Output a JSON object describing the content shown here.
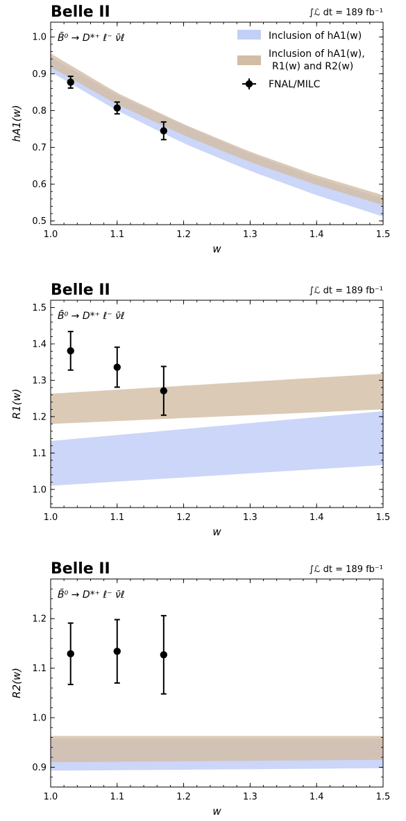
{
  "colors": {
    "band_a": "#c2cff7",
    "band_b": "#d2bda4",
    "point": "#000000"
  },
  "chart_data": [
    {
      "type": "line",
      "title": "Belle II",
      "luminosity": "∫ℒ dt = 189 fb⁻¹",
      "process": "B̄⁰ → D*⁺ ℓ⁻ ν̄ℓ",
      "xlabel": "w",
      "ylabel": "hA1(w)",
      "xlim": [
        1.0,
        1.5
      ],
      "ylim": [
        0.49,
        1.04
      ],
      "xticks": [
        "1.0",
        "1.1",
        "1.2",
        "1.3",
        "1.4",
        "1.5"
      ],
      "yticks": [
        "0.5",
        "0.6",
        "0.7",
        "0.8",
        "0.9",
        "1.0"
      ],
      "legend": {
        "position": "top-right",
        "entries": [
          "Inclusion of hA1(w)",
          "Inclusion of hA1(w), R1(w) and R2(w)",
          "FNAL/MILC"
        ]
      },
      "series": [
        {
          "name": "Inclusion of hA1(w)",
          "kind": "band",
          "x": [
            1.0,
            1.1,
            1.2,
            1.3,
            1.4,
            1.5
          ],
          "low": [
            0.905,
            0.8,
            0.711,
            0.636,
            0.57,
            0.512
          ],
          "high": [
            0.945,
            0.842,
            0.76,
            0.683,
            0.617,
            0.562
          ]
        },
        {
          "name": "Inclusion of hA1(w), R1(w) and R2(w)",
          "kind": "band",
          "x": [
            1.0,
            1.1,
            1.2,
            1.3,
            1.4,
            1.5
          ],
          "low": [
            0.918,
            0.817,
            0.733,
            0.66,
            0.598,
            0.543
          ],
          "high": [
            0.955,
            0.848,
            0.763,
            0.688,
            0.624,
            0.57
          ]
        },
        {
          "name": "FNAL/MILC",
          "kind": "points",
          "x": [
            1.03,
            1.1,
            1.17
          ],
          "y": [
            0.877,
            0.807,
            0.745
          ],
          "err": [
            0.016,
            0.016,
            0.024
          ]
        }
      ]
    },
    {
      "type": "line",
      "title": "Belle II",
      "luminosity": "∫ℒ dt = 189 fb⁻¹",
      "process": "B̄⁰ → D*⁺ ℓ⁻ ν̄ℓ",
      "xlabel": "w",
      "ylabel": "R1(w)",
      "xlim": [
        1.0,
        1.5
      ],
      "ylim": [
        0.95,
        1.52
      ],
      "xticks": [
        "1.0",
        "1.1",
        "1.2",
        "1.3",
        "1.4",
        "1.5"
      ],
      "yticks": [
        "1.0",
        "1.1",
        "1.2",
        "1.3",
        "1.4",
        "1.5"
      ],
      "series": [
        {
          "name": "Inclusion of hA1(w)",
          "kind": "band",
          "x": [
            1.0,
            1.5
          ],
          "low": [
            1.01,
            1.067
          ],
          "high": [
            1.133,
            1.215
          ]
        },
        {
          "name": "Inclusion of hA1(w), R1(w) and R2(w)",
          "kind": "band",
          "x": [
            1.0,
            1.5
          ],
          "low": [
            1.18,
            1.22
          ],
          "high": [
            1.263,
            1.318
          ]
        },
        {
          "name": "FNAL/MILC",
          "kind": "points",
          "x": [
            1.03,
            1.1,
            1.17
          ],
          "y": [
            1.381,
            1.336,
            1.271
          ],
          "err": [
            0.053,
            0.055,
            0.067
          ]
        }
      ]
    },
    {
      "type": "line",
      "title": "Belle II",
      "luminosity": "∫ℒ dt = 189 fb⁻¹",
      "process": "B̄⁰ → D*⁺ ℓ⁻ ν̄ℓ",
      "xlabel": "w",
      "ylabel": "R2(w)",
      "xlim": [
        1.0,
        1.5
      ],
      "ylim": [
        0.86,
        1.28
      ],
      "xticks": [
        "1.0",
        "1.1",
        "1.2",
        "1.3",
        "1.4",
        "1.5"
      ],
      "yticks": [
        "0.9",
        "1.0",
        "1.1",
        "1.2"
      ],
      "series": [
        {
          "name": "Inclusion of hA1(w)",
          "kind": "band",
          "x": [
            1.0,
            1.5
          ],
          "low": [
            0.893,
            0.898
          ],
          "high": [
            0.957,
            0.957
          ]
        },
        {
          "name": "Inclusion of hA1(w), R1(w) and R2(w)",
          "kind": "band",
          "x": [
            1.0,
            1.5
          ],
          "low": [
            0.91,
            0.915
          ],
          "high": [
            0.963,
            0.963
          ]
        },
        {
          "name": "FNAL/MILC",
          "kind": "points",
          "x": [
            1.03,
            1.1,
            1.17
          ],
          "y": [
            1.129,
            1.134,
            1.127
          ],
          "err": [
            0.062,
            0.064,
            0.079
          ]
        }
      ]
    }
  ]
}
